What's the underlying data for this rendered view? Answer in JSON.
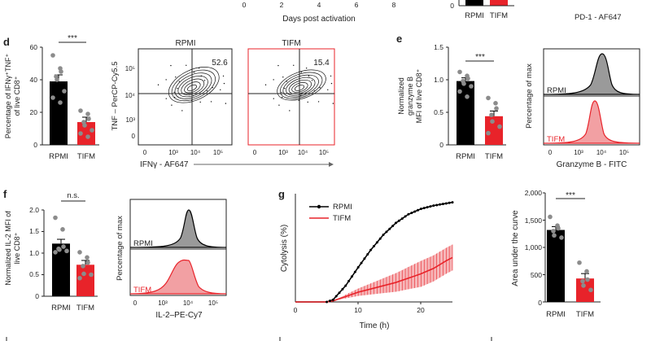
{
  "top_strip": {
    "xlabel": "Days post activation",
    "ticks": [
      "0",
      "2",
      "4",
      "6",
      "8"
    ],
    "cats": [
      "RPMI",
      "TIFM"
    ],
    "ylabel_tick": "0",
    "axis_right": "PD-1 - AF647"
  },
  "colors": {
    "rpmi": "#000000",
    "tifm": "#e8232a",
    "tifm_fill": "#f2a0a3",
    "rpmi_fill": "#9a9a9a",
    "grey_dot": "#8c8c8c"
  },
  "panel_labels": {
    "d": "d",
    "e": "e",
    "f": "f",
    "g": "g"
  },
  "panel_d": {
    "bar": {
      "ylabel": [
        "Percentage of IFNγ⁺TNF⁺",
        "of live CD8⁺"
      ],
      "yticks": [
        "0",
        "20",
        "40",
        "60"
      ],
      "categories": [
        "RPMI",
        "TIFM"
      ],
      "sig": "***",
      "values": [
        39,
        14
      ]
    },
    "flow": {
      "titles": [
        "RPMI",
        "TIFM"
      ],
      "percents": [
        "52.6",
        "15.4"
      ],
      "ylabel": "TNF – PerCP-Cy5.5",
      "xlabel": "IFNγ - AF647",
      "yticks": [
        "10⁵",
        "10⁴",
        "10³",
        "0"
      ],
      "xticks": [
        "0",
        "10³",
        "10⁴",
        "10⁵"
      ]
    }
  },
  "panel_e": {
    "bar": {
      "ylabel": [
        "Normalized",
        "granzyme B",
        "MFI of live CD8⁺"
      ],
      "yticks": [
        "0",
        "0.5",
        "1.0",
        "1.5"
      ],
      "categories": [
        "RPMI",
        "TIFM"
      ],
      "sig": "***",
      "values": [
        0.98,
        0.44
      ]
    },
    "hist": {
      "ylabel": "Percentage of max",
      "xlabel": "Granzyme B - FITC",
      "labels": [
        "RPMI",
        "TIFM"
      ],
      "xticks": [
        "0",
        "10³",
        "10⁴",
        "10⁵"
      ]
    }
  },
  "panel_f": {
    "bar": {
      "ylabel": [
        "Normalized IL-2 MFI of",
        "live CD8⁺"
      ],
      "yticks": [
        "0",
        "0.5",
        "1.0",
        "1.5",
        "2.0"
      ],
      "categories": [
        "RPMI",
        "TIFM"
      ],
      "sig": "n.s.",
      "values": [
        1.22,
        0.73
      ]
    },
    "hist": {
      "ylabel": "Percentage of max",
      "xlabel": "IL-2–PE-Cy7",
      "labels": [
        "RPMI",
        "TIFM"
      ],
      "xticks": [
        "0",
        "10³",
        "10⁴",
        "10⁵"
      ]
    }
  },
  "panel_g": {
    "line": {
      "ylabel": "Cytolysis (%)",
      "xlabel": "Time (h)",
      "xticks": [
        "0",
        "10",
        "20"
      ],
      "legend": [
        "RPMI",
        "TIFM"
      ]
    },
    "bar": {
      "ylabel": "Area under the curve",
      "yticks": [
        "0",
        "500",
        "1,000",
        "1,500",
        "2,000"
      ],
      "categories": [
        "RPMI",
        "TIFM"
      ],
      "sig": "***",
      "values": [
        1320,
        430
      ]
    }
  },
  "chart_data": [
    {
      "id": "d-bar",
      "type": "bar",
      "ylabel": "Percentage of IFNγ⁺TNF⁺ of live CD8⁺",
      "categories": [
        "RPMI",
        "TIFM"
      ],
      "values": [
        39,
        14
      ],
      "errors": [
        4,
        3
      ],
      "ylim": [
        0,
        60
      ],
      "points": [
        [
          55,
          47,
          45,
          42,
          40,
          33,
          29,
          26
        ],
        [
          21,
          19,
          16,
          14,
          12,
          9,
          7,
          5
        ]
      ]
    },
    {
      "id": "e-bar",
      "type": "bar",
      "ylabel": "Normalized granzyme B MFI of live CD8⁺",
      "categories": [
        "RPMI",
        "TIFM"
      ],
      "values": [
        0.98,
        0.44
      ],
      "errors": [
        0.05,
        0.08
      ],
      "ylim": [
        0,
        1.5
      ],
      "points": [
        [
          1.12,
          1.06,
          1.02,
          0.98,
          0.94,
          0.9,
          0.82,
          0.74
        ],
        [
          0.72,
          0.64,
          0.56,
          0.46,
          0.36,
          0.28,
          0.18
        ]
      ]
    },
    {
      "id": "f-bar",
      "type": "bar",
      "ylabel": "Normalized IL-2 MFI of live CD8⁺",
      "categories": [
        "RPMI",
        "TIFM"
      ],
      "values": [
        1.22,
        0.73
      ],
      "errors": [
        0.1,
        0.1
      ],
      "ylim": [
        0,
        2.0
      ],
      "points": [
        [
          1.82,
          1.55,
          1.15,
          1.1,
          1.08,
          1.05,
          1.02
        ],
        [
          1.02,
          0.9,
          0.78,
          0.7,
          0.52,
          0.5,
          0.42
        ]
      ]
    },
    {
      "id": "g-bar",
      "type": "bar",
      "ylabel": "Area under the curve",
      "categories": [
        "RPMI",
        "TIFM"
      ],
      "values": [
        1320,
        430
      ],
      "errors": [
        60,
        90
      ],
      "ylim": [
        0,
        2000
      ],
      "points": [
        [
          1560,
          1400,
          1350,
          1300,
          1220,
          1180
        ],
        [
          720,
          560,
          410,
          380,
          300,
          220
        ]
      ]
    },
    {
      "id": "g-line",
      "type": "line",
      "xlabel": "Time (h)",
      "ylabel": "Cytolysis (%)",
      "xlim": [
        0,
        25
      ],
      "ylim": [
        0,
        100
      ],
      "series": [
        {
          "name": "RPMI",
          "x": [
            0,
            5,
            6,
            8,
            10,
            12,
            14,
            16,
            18,
            20,
            22,
            24,
            25
          ],
          "y": [
            0,
            0,
            2,
            15,
            32,
            48,
            62,
            73,
            81,
            86,
            89,
            91,
            92
          ]
        },
        {
          "name": "TIFM",
          "x": [
            0,
            5,
            6,
            8,
            10,
            12,
            14,
            16,
            18,
            20,
            22,
            24,
            25
          ],
          "y": [
            0,
            0,
            1,
            5,
            9,
            12,
            15,
            18,
            22,
            26,
            31,
            38,
            41
          ],
          "error": 12
        }
      ]
    }
  ]
}
